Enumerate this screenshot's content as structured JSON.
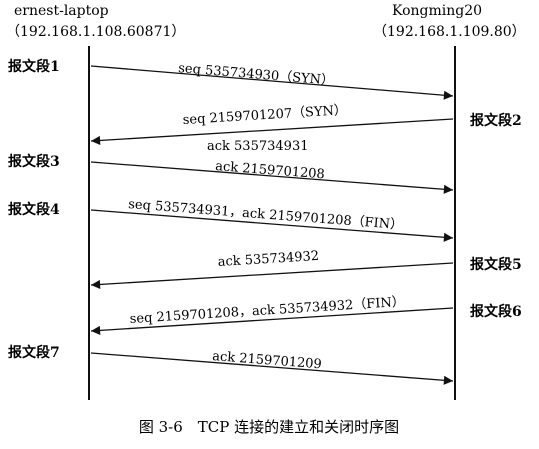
{
  "hosts": {
    "left": {
      "name": "ernest-laptop",
      "address": "（192.168.1.108.60871）"
    },
    "right": {
      "name": "Kongming20",
      "address": "（192.168.1.109.80）"
    }
  },
  "messages": [
    {
      "segment": "报文段1",
      "side": "left",
      "direction": "to-right",
      "lines": [
        "seq 535734930（SYN）"
      ]
    },
    {
      "segment": "报文段2",
      "side": "right",
      "direction": "to-left",
      "lines": [
        "seq 2159701207（SYN）",
        "ack 535734931"
      ]
    },
    {
      "segment": "报文段3",
      "side": "left",
      "direction": "to-right",
      "lines": [
        "ack 2159701208"
      ]
    },
    {
      "segment": "报文段4",
      "side": "left",
      "direction": "to-right",
      "lines": [
        "seq 535734931，ack 2159701208（FIN）"
      ]
    },
    {
      "segment": "报文段5",
      "side": "right",
      "direction": "to-left",
      "lines": [
        "ack 535734932"
      ]
    },
    {
      "segment": "报文段6",
      "side": "right",
      "direction": "to-left",
      "lines": [
        "seq 2159701208，ack 535734932（FIN）"
      ]
    },
    {
      "segment": "报文段7",
      "side": "left",
      "direction": "to-right",
      "lines": [
        "ack 2159701209"
      ]
    }
  ],
  "caption": "图 3-6　TCP 连接的建立和关闭时序图",
  "colors": {
    "line": "#111111",
    "text": "#111111",
    "background": "#ffffff"
  }
}
